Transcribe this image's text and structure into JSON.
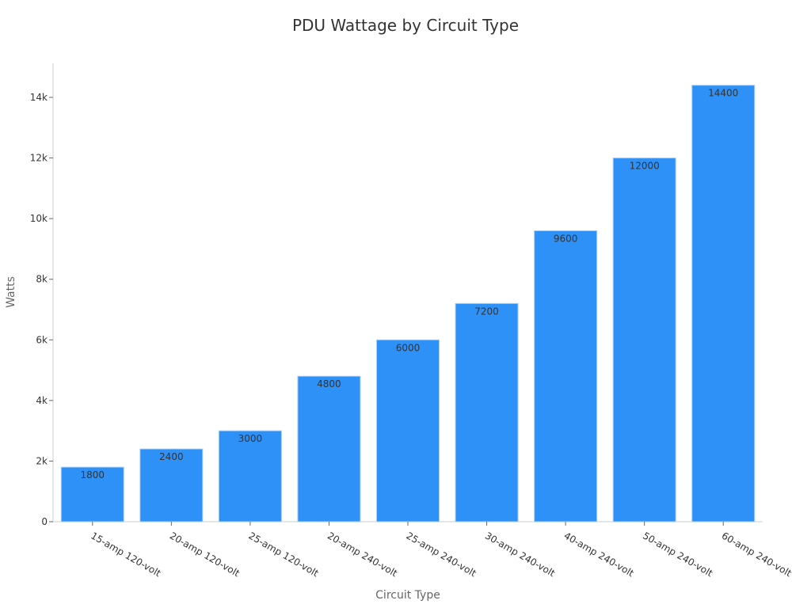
{
  "title": "PDU Wattage by Circuit Type",
  "colors": {
    "bar": "#2e91f8",
    "bar_edge": "#a8cff5",
    "axis": "#cccccc",
    "text": "#333333"
  },
  "chart_data": {
    "type": "bar",
    "title": "PDU Wattage by Circuit Type",
    "xlabel": "Circuit Type",
    "ylabel": "Watts",
    "categories": [
      "15-amp 120-volt",
      "20-amp 120-volt",
      "25-amp 120-volt",
      "20-amp 240-volt",
      "25-amp 240-volt",
      "30-amp 240-volt",
      "40-amp 240-volt",
      "50-amp 240-volt",
      "60-amp 240-volt"
    ],
    "values": [
      1800,
      2400,
      3000,
      4800,
      6000,
      7200,
      9600,
      12000,
      14400
    ],
    "yticks": [
      0,
      2000,
      4000,
      6000,
      8000,
      10000,
      12000,
      14000
    ],
    "ytick_labels": [
      "0",
      "2k",
      "4k",
      "6k",
      "8k",
      "10k",
      "12k",
      "14k"
    ],
    "ylim": [
      0,
      15000
    ],
    "grid": false,
    "legend": null
  }
}
